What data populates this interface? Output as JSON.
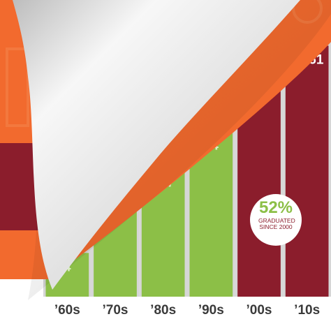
{
  "chart_data": {
    "type": "bar",
    "categories": [
      "’60s",
      "’70s",
      "’80s",
      "’90s",
      "’00s",
      "’10s"
    ],
    "values": [
      1474,
      3400,
      4317,
      5564,
      7600,
      8461
    ],
    "value_labels": [
      "4",
      "",
      "317",
      "64",
      "",
      "8,461"
    ],
    "ylim": [
      0,
      10000
    ],
    "title": "",
    "xlabel": "",
    "ylabel": "",
    "grid": false,
    "bar_colors": [
      "#8cbf47",
      "#8cbf47",
      "#8cbf47",
      "#8cbf47",
      "#8b1d2c",
      "#8b1d2c"
    ]
  },
  "stat": {
    "value": "52%",
    "caption": "GRADUATED SINCE 2000"
  },
  "colors": {
    "orange": "#f26a2e",
    "maroon": "#8b1d2c",
    "green": "#8cbf47",
    "track": "#d6d6d6",
    "page": "#e8e8e8"
  }
}
